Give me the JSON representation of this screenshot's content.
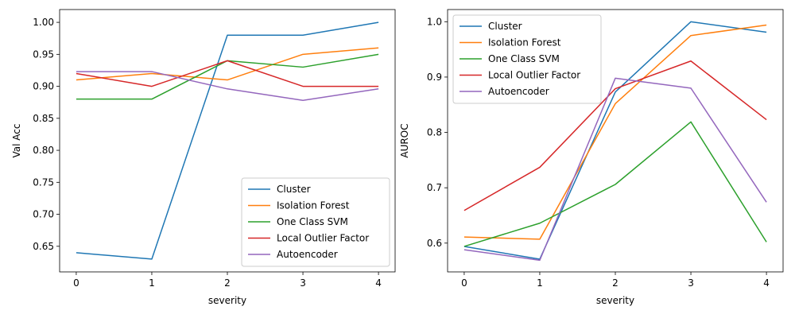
{
  "chart_data": [
    {
      "type": "line",
      "xlabel": "severity",
      "ylabel": "Val Acc",
      "x": [
        0,
        1,
        2,
        3,
        4
      ],
      "xticks": [
        "0",
        "1",
        "2",
        "3",
        "4"
      ],
      "ylim": [
        0.61,
        1.02
      ],
      "yticks": [
        "0.65",
        "0.70",
        "0.75",
        "0.80",
        "0.85",
        "0.90",
        "0.95",
        "1.00"
      ],
      "legend_position": "lower-right",
      "grid": false,
      "series": [
        {
          "name": "Cluster",
          "color": "#1f77b4",
          "values": [
            0.64,
            0.63,
            0.98,
            0.98,
            1.0
          ]
        },
        {
          "name": "Isolation Forest",
          "color": "#ff7f0e",
          "values": [
            0.91,
            0.92,
            0.91,
            0.95,
            0.96
          ]
        },
        {
          "name": "One Class SVM",
          "color": "#2ca02c",
          "values": [
            0.88,
            0.88,
            0.94,
            0.93,
            0.95
          ]
        },
        {
          "name": "Local Outlier Factor",
          "color": "#d62728",
          "values": [
            0.92,
            0.9,
            0.94,
            0.9,
            0.9
          ]
        },
        {
          "name": "Autoencoder",
          "color": "#9467bd",
          "values": [
            0.923,
            0.923,
            0.896,
            0.878,
            0.896
          ]
        }
      ]
    },
    {
      "type": "line",
      "xlabel": "severity",
      "ylabel": "AUROC",
      "x": [
        0,
        1,
        2,
        3,
        4
      ],
      "xticks": [
        "0",
        "1",
        "2",
        "3",
        "4"
      ],
      "ylim": [
        0.548,
        1.022
      ],
      "yticks": [
        "0.6",
        "0.7",
        "0.8",
        "0.9",
        "1.0"
      ],
      "legend_position": "upper-left",
      "grid": false,
      "series": [
        {
          "name": "Cluster",
          "color": "#1f77b4",
          "values": [
            0.594,
            0.571,
            0.873,
            1.0,
            0.981
          ]
        },
        {
          "name": "Isolation Forest",
          "color": "#ff7f0e",
          "values": [
            0.611,
            0.607,
            0.852,
            0.975,
            0.994
          ]
        },
        {
          "name": "One Class SVM",
          "color": "#2ca02c",
          "values": [
            0.594,
            0.636,
            0.706,
            0.819,
            0.602
          ]
        },
        {
          "name": "Local Outlier Factor",
          "color": "#d62728",
          "values": [
            0.659,
            0.737,
            0.879,
            0.929,
            0.823
          ]
        },
        {
          "name": "Autoencoder",
          "color": "#9467bd",
          "values": [
            0.588,
            0.569,
            0.898,
            0.88,
            0.674
          ]
        }
      ]
    }
  ]
}
